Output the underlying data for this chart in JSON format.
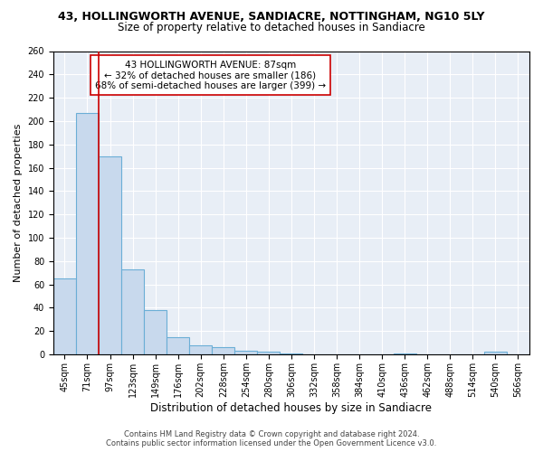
{
  "title": "43, HOLLINGWORTH AVENUE, SANDIACRE, NOTTINGHAM, NG10 5LY",
  "subtitle": "Size of property relative to detached houses in Sandiacre",
  "xlabel": "Distribution of detached houses by size in Sandiacre",
  "ylabel": "Number of detached properties",
  "bar_labels": [
    "45sqm",
    "71sqm",
    "97sqm",
    "123sqm",
    "149sqm",
    "176sqm",
    "202sqm",
    "228sqm",
    "254sqm",
    "280sqm",
    "306sqm",
    "332sqm",
    "358sqm",
    "384sqm",
    "410sqm",
    "436sqm",
    "462sqm",
    "488sqm",
    "514sqm",
    "540sqm",
    "566sqm"
  ],
  "bar_values": [
    65,
    207,
    170,
    73,
    38,
    15,
    8,
    6,
    3,
    2,
    1,
    0,
    0,
    0,
    0,
    1,
    0,
    0,
    0,
    2,
    0
  ],
  "bar_color": "#c8d9ed",
  "bar_edgecolor": "#6baed6",
  "red_line_x": 1.5,
  "red_line_color": "#cc0000",
  "annotation_text": "43 HOLLINGWORTH AVENUE: 87sqm\n← 32% of detached houses are smaller (186)\n68% of semi-detached houses are larger (399) →",
  "annotation_box_color": "white",
  "annotation_box_edgecolor": "#cc0000",
  "ylim": [
    0,
    260
  ],
  "yticks": [
    0,
    20,
    40,
    60,
    80,
    100,
    120,
    140,
    160,
    180,
    200,
    220,
    240,
    260
  ],
  "background_color": "#e8eef6",
  "grid_color": "white",
  "footer_line1": "Contains HM Land Registry data © Crown copyright and database right 2024.",
  "footer_line2": "Contains public sector information licensed under the Open Government Licence v3.0.",
  "title_fontsize": 9,
  "subtitle_fontsize": 8.5,
  "xlabel_fontsize": 8.5,
  "ylabel_fontsize": 8,
  "tick_fontsize": 7,
  "annotation_fontsize": 7.5,
  "footer_fontsize": 6.0
}
